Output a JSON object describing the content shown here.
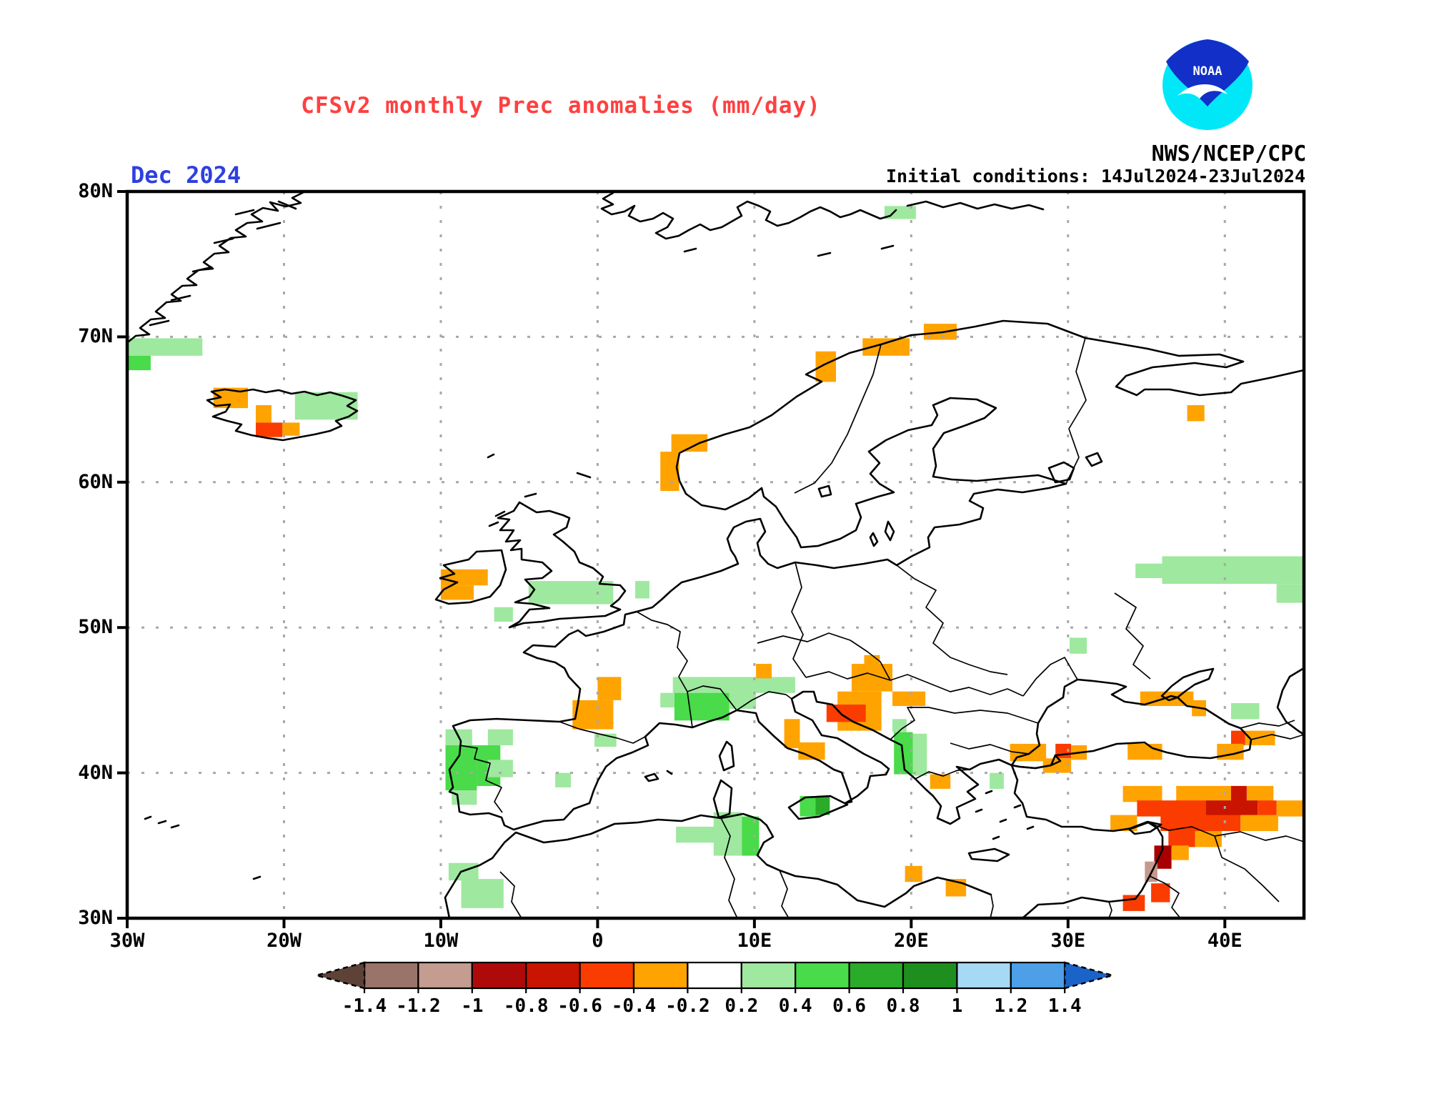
{
  "header": {
    "title": "CFSv2 monthly Prec anomalies (mm/day)",
    "date_label": "Dec 2024",
    "initial_conditions": "Initial conditions:  14Jul2024-23Jul2024",
    "agency": "NWS/NCEP/CPC",
    "logo_text": "NOAA"
  },
  "colors": {
    "title": "#FF4040",
    "date_label": "#2E3FE0",
    "grid": "#A8A8A8",
    "coast": "#000000",
    "frame": "#000000"
  },
  "chart_data": {
    "type": "heatmap",
    "title": "CFSv2 monthly Prec anomalies (mm/day)",
    "units": "mm/day",
    "forecast_month": "Dec 2024",
    "initial_conditions": "14Jul2024-23Jul2024",
    "projection": "latlon",
    "lon_range": [
      -30,
      45
    ],
    "lat_range": [
      30,
      80
    ],
    "x_ticks": [
      {
        "lon": -30,
        "label": "30W"
      },
      {
        "lon": -20,
        "label": "20W"
      },
      {
        "lon": -10,
        "label": "10W"
      },
      {
        "lon": 0,
        "label": "0"
      },
      {
        "lon": 10,
        "label": "10E"
      },
      {
        "lon": 20,
        "label": "20E"
      },
      {
        "lon": 30,
        "label": "30E"
      },
      {
        "lon": 40,
        "label": "40E"
      }
    ],
    "y_ticks": [
      {
        "lat": 80,
        "label": "80N"
      },
      {
        "lat": 70,
        "label": "70N"
      },
      {
        "lat": 60,
        "label": "60N"
      },
      {
        "lat": 50,
        "label": "50N"
      },
      {
        "lat": 40,
        "label": "40N"
      },
      {
        "lat": 30,
        "label": "30N"
      }
    ],
    "colorbar": {
      "labels": [
        "-1.4",
        "-1.2",
        "-1",
        "-0.8",
        "-0.6",
        "-0.4",
        "-0.2",
        "0.2",
        "0.4",
        "0.6",
        "0.8",
        "1",
        "1.2",
        "1.4"
      ],
      "box_colors": [
        "#9A7468",
        "#C49C90",
        "#AF0A0A",
        "#C81400",
        "#FA3C00",
        "#FFA300",
        "#FFFFFF",
        "#9FE89F",
        "#49DB49",
        "#2AAB2A",
        "#1E8F1E",
        "#A6D9F4",
        "#4D9FE8"
      ],
      "arrow_left_color": "#5E4238",
      "arrow_right_color": "#1A63C8"
    },
    "palette": {
      "m02": "#FFA300",
      "m04": "#FA3C00",
      "m06": "#C81400",
      "m08": "#A80000",
      "m10": "#C49A8E",
      "p02": "#9FE89F",
      "p04": "#49DB49",
      "p06": "#2AAB2A"
    },
    "bin_meaning_mm_day": {
      "m02": "-0.4 to -0.2",
      "m04": "-0.6 to -0.4",
      "m06": "-0.8 to -0.6",
      "m08": "-1.0 to -0.8",
      "m10": "-1.2 to -1.0",
      "p02": "0.2 to 0.4",
      "p04": "0.4 to 0.6",
      "p06": "0.6 to 0.8"
    },
    "cells": [
      {
        "lon": -30.0,
        "lat": 69.9,
        "w": 4.8,
        "h": 1.2,
        "b": "p02"
      },
      {
        "lon": -30.0,
        "lat": 68.7,
        "w": 1.5,
        "h": 1.0,
        "b": "p04"
      },
      {
        "lon": -24.5,
        "lat": 66.5,
        "w": 2.2,
        "h": 1.4,
        "b": "m02"
      },
      {
        "lon": -21.8,
        "lat": 65.3,
        "w": 1.0,
        "h": 1.2,
        "b": "m02"
      },
      {
        "lon": -21.8,
        "lat": 64.1,
        "w": 1.7,
        "h": 1.0,
        "b": "m04"
      },
      {
        "lon": -20.1,
        "lat": 64.1,
        "w": 1.1,
        "h": 0.9,
        "b": "m02"
      },
      {
        "lon": -19.3,
        "lat": 66.2,
        "w": 4.0,
        "h": 1.9,
        "b": "p02"
      },
      {
        "lon": 18.3,
        "lat": 79.0,
        "w": 2.0,
        "h": 0.9,
        "b": "p02"
      },
      {
        "lon": 13.9,
        "lat": 69.0,
        "w": 1.3,
        "h": 2.1,
        "b": "m02"
      },
      {
        "lon": 16.9,
        "lat": 69.9,
        "w": 3.0,
        "h": 1.2,
        "b": "m02"
      },
      {
        "lon": 20.8,
        "lat": 70.9,
        "w": 2.1,
        "h": 1.1,
        "b": "m02"
      },
      {
        "lon": 4.7,
        "lat": 63.3,
        "w": 2.3,
        "h": 1.2,
        "b": "m02"
      },
      {
        "lon": 4.0,
        "lat": 62.1,
        "w": 1.2,
        "h": 2.7,
        "b": "m02"
      },
      {
        "lon": 37.6,
        "lat": 65.3,
        "w": 1.1,
        "h": 1.1,
        "b": "m02"
      },
      {
        "lon": -10.0,
        "lat": 54.0,
        "w": 3.0,
        "h": 1.1,
        "b": "m02"
      },
      {
        "lon": -10.0,
        "lat": 52.9,
        "w": 2.1,
        "h": 1.0,
        "b": "m02"
      },
      {
        "lon": -4.4,
        "lat": 53.2,
        "w": 5.4,
        "h": 1.6,
        "b": "p02"
      },
      {
        "lon": -6.6,
        "lat": 51.4,
        "w": 1.2,
        "h": 1.0,
        "b": "p02"
      },
      {
        "lon": 2.4,
        "lat": 53.2,
        "w": 0.9,
        "h": 1.2,
        "b": "p02"
      },
      {
        "lon": 0.0,
        "lat": 46.6,
        "w": 1.5,
        "h": 1.6,
        "b": "m02"
      },
      {
        "lon": -1.6,
        "lat": 45.0,
        "w": 2.6,
        "h": 2.0,
        "b": "m02"
      },
      {
        "lon": -9.7,
        "lat": 43.0,
        "w": 1.7,
        "h": 1.1,
        "b": "p02"
      },
      {
        "lon": -7.0,
        "lat": 43.0,
        "w": 1.6,
        "h": 1.1,
        "b": "p02"
      },
      {
        "lon": -9.7,
        "lat": 41.9,
        "w": 2.0,
        "h": 3.1,
        "b": "p04"
      },
      {
        "lon": -7.7,
        "lat": 41.9,
        "w": 1.5,
        "h": 2.8,
        "b": "p04"
      },
      {
        "lon": -7.0,
        "lat": 40.9,
        "w": 1.6,
        "h": 1.2,
        "b": "p02"
      },
      {
        "lon": -9.3,
        "lat": 38.8,
        "w": 1.6,
        "h": 1.0,
        "b": "p02"
      },
      {
        "lon": -2.7,
        "lat": 40.0,
        "w": 1.0,
        "h": 1.0,
        "b": "p02"
      },
      {
        "lon": -0.2,
        "lat": 42.7,
        "w": 1.4,
        "h": 0.9,
        "b": "p02"
      },
      {
        "lon": -9.5,
        "lat": 33.8,
        "w": 1.9,
        "h": 1.2,
        "b": "p02"
      },
      {
        "lon": -8.7,
        "lat": 32.7,
        "w": 2.7,
        "h": 2.0,
        "b": "p02"
      },
      {
        "lon": 4.8,
        "lat": 46.6,
        "w": 7.8,
        "h": 1.1,
        "b": "p02"
      },
      {
        "lon": 4.9,
        "lat": 45.5,
        "w": 3.5,
        "h": 1.9,
        "b": "p04"
      },
      {
        "lon": 4.0,
        "lat": 45.5,
        "w": 0.9,
        "h": 1.0,
        "b": "p02"
      },
      {
        "lon": 8.4,
        "lat": 45.5,
        "w": 1.7,
        "h": 1.1,
        "b": "p02"
      },
      {
        "lon": 10.1,
        "lat": 47.5,
        "w": 1.0,
        "h": 1.0,
        "b": "m02"
      },
      {
        "lon": 17.0,
        "lat": 48.1,
        "w": 1.0,
        "h": 0.7,
        "b": "m02"
      },
      {
        "lon": 16.2,
        "lat": 47.5,
        "w": 2.6,
        "h": 1.9,
        "b": "m02"
      },
      {
        "lon": 18.8,
        "lat": 45.6,
        "w": 2.1,
        "h": 1.0,
        "b": "m02"
      },
      {
        "lon": 15.3,
        "lat": 45.6,
        "w": 2.8,
        "h": 2.7,
        "b": "m02"
      },
      {
        "lon": 14.6,
        "lat": 44.7,
        "w": 2.5,
        "h": 1.2,
        "b": "m04"
      },
      {
        "lon": 11.9,
        "lat": 43.7,
        "w": 1.0,
        "h": 2.0,
        "b": "m02"
      },
      {
        "lon": 12.8,
        "lat": 42.1,
        "w": 1.7,
        "h": 1.2,
        "b": "m02"
      },
      {
        "lon": 18.9,
        "lat": 42.8,
        "w": 1.2,
        "h": 2.9,
        "b": "p04"
      },
      {
        "lon": 20.1,
        "lat": 42.7,
        "w": 0.9,
        "h": 2.9,
        "b": "p02"
      },
      {
        "lon": 18.8,
        "lat": 43.7,
        "w": 0.9,
        "h": 0.9,
        "b": "p02"
      },
      {
        "lon": 12.9,
        "lat": 38.4,
        "w": 1.2,
        "h": 1.4,
        "b": "p04"
      },
      {
        "lon": 13.9,
        "lat": 38.4,
        "w": 0.9,
        "h": 1.3,
        "b": "p06"
      },
      {
        "lon": 5.0,
        "lat": 36.3,
        "w": 2.6,
        "h": 1.1,
        "b": "p02"
      },
      {
        "lon": 7.4,
        "lat": 37.3,
        "w": 1.8,
        "h": 3.0,
        "b": "p02"
      },
      {
        "lon": 9.2,
        "lat": 37.0,
        "w": 1.1,
        "h": 2.7,
        "b": "p04"
      },
      {
        "lon": 19.6,
        "lat": 33.6,
        "w": 1.1,
        "h": 1.1,
        "b": "m02"
      },
      {
        "lon": 22.2,
        "lat": 32.7,
        "w": 1.3,
        "h": 1.2,
        "b": "m02"
      },
      {
        "lon": 21.2,
        "lat": 39.9,
        "w": 1.3,
        "h": 1.0,
        "b": "m02"
      },
      {
        "lon": 25.0,
        "lat": 40.0,
        "w": 0.9,
        "h": 1.1,
        "b": "p02"
      },
      {
        "lon": 30.1,
        "lat": 49.3,
        "w": 1.1,
        "h": 1.1,
        "b": "p02"
      },
      {
        "lon": 36.0,
        "lat": 54.9,
        "w": 9.0,
        "h": 1.9,
        "b": "p02"
      },
      {
        "lon": 34.3,
        "lat": 54.4,
        "w": 1.7,
        "h": 1.0,
        "b": "p02"
      },
      {
        "lon": 43.3,
        "lat": 53.0,
        "w": 1.7,
        "h": 1.3,
        "b": "p02"
      },
      {
        "lon": 40.4,
        "lat": 44.8,
        "w": 1.8,
        "h": 1.1,
        "b": "p02"
      },
      {
        "lon": 40.4,
        "lat": 42.9,
        "w": 0.9,
        "h": 1.0,
        "b": "m04"
      },
      {
        "lon": 41.3,
        "lat": 42.9,
        "w": 1.9,
        "h": 1.0,
        "b": "m02"
      },
      {
        "lon": 34.6,
        "lat": 45.6,
        "w": 1.4,
        "h": 1.0,
        "b": "m02"
      },
      {
        "lon": 36.0,
        "lat": 45.6,
        "w": 2.0,
        "h": 1.0,
        "b": "m02"
      },
      {
        "lon": 37.9,
        "lat": 45.0,
        "w": 0.9,
        "h": 1.1,
        "b": "m02"
      },
      {
        "lon": 26.3,
        "lat": 42.0,
        "w": 2.3,
        "h": 1.2,
        "b": "m02"
      },
      {
        "lon": 29.2,
        "lat": 42.0,
        "w": 1.0,
        "h": 1.0,
        "b": "m04"
      },
      {
        "lon": 30.2,
        "lat": 41.9,
        "w": 1.0,
        "h": 1.0,
        "b": "m02"
      },
      {
        "lon": 28.4,
        "lat": 41.0,
        "w": 1.8,
        "h": 1.0,
        "b": "m02"
      },
      {
        "lon": 33.8,
        "lat": 42.0,
        "w": 2.2,
        "h": 1.1,
        "b": "m02"
      },
      {
        "lon": 39.5,
        "lat": 42.0,
        "w": 1.7,
        "h": 1.1,
        "b": "m02"
      },
      {
        "lon": 33.5,
        "lat": 39.1,
        "w": 2.5,
        "h": 1.1,
        "b": "m02"
      },
      {
        "lon": 36.9,
        "lat": 39.1,
        "w": 3.5,
        "h": 1.1,
        "b": "m02"
      },
      {
        "lon": 40.4,
        "lat": 39.1,
        "w": 1.0,
        "h": 1.1,
        "b": "m06"
      },
      {
        "lon": 41.4,
        "lat": 39.1,
        "w": 1.7,
        "h": 1.1,
        "b": "m02"
      },
      {
        "lon": 34.4,
        "lat": 38.1,
        "w": 4.4,
        "h": 1.1,
        "b": "m04"
      },
      {
        "lon": 38.8,
        "lat": 38.1,
        "w": 3.3,
        "h": 1.1,
        "b": "m06"
      },
      {
        "lon": 42.1,
        "lat": 38.1,
        "w": 1.2,
        "h": 1.1,
        "b": "m04"
      },
      {
        "lon": 43.3,
        "lat": 38.1,
        "w": 1.7,
        "h": 1.1,
        "b": "m02"
      },
      {
        "lon": 32.7,
        "lat": 37.1,
        "w": 1.7,
        "h": 1.1,
        "b": "m02"
      },
      {
        "lon": 35.9,
        "lat": 37.1,
        "w": 5.1,
        "h": 1.1,
        "b": "m04"
      },
      {
        "lon": 41.0,
        "lat": 37.1,
        "w": 2.4,
        "h": 1.1,
        "b": "m02"
      },
      {
        "lon": 36.4,
        "lat": 36.0,
        "w": 1.7,
        "h": 1.1,
        "b": "m04"
      },
      {
        "lon": 38.1,
        "lat": 36.0,
        "w": 1.7,
        "h": 1.1,
        "b": "m02"
      },
      {
        "lon": 35.5,
        "lat": 35.0,
        "w": 1.1,
        "h": 1.6,
        "b": "m08"
      },
      {
        "lon": 36.6,
        "lat": 35.0,
        "w": 1.1,
        "h": 1.0,
        "b": "m02"
      },
      {
        "lon": 34.9,
        "lat": 33.9,
        "w": 0.8,
        "h": 1.4,
        "b": "m10"
      },
      {
        "lon": 35.3,
        "lat": 32.4,
        "w": 1.2,
        "h": 1.3,
        "b": "m04"
      },
      {
        "lon": 33.5,
        "lat": 31.6,
        "w": 1.4,
        "h": 1.1,
        "b": "m04"
      }
    ]
  }
}
